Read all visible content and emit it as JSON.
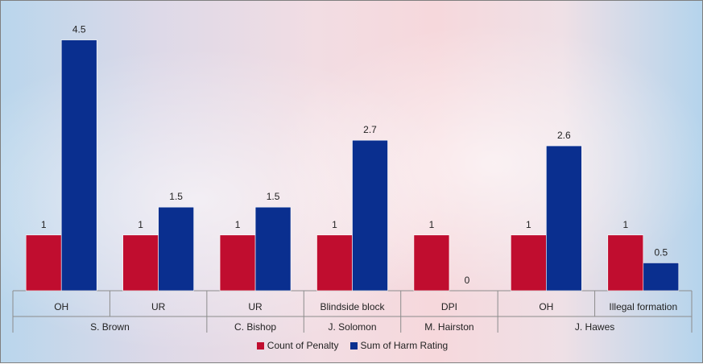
{
  "chart_data": {
    "type": "bar",
    "title": "",
    "xlabel": "",
    "ylabel": "",
    "ylim": [
      0,
      4.5
    ],
    "grid": false,
    "legend_position": "bottom",
    "groups": [
      {
        "name": "S. Brown",
        "categories": [
          "OH",
          "UR"
        ]
      },
      {
        "name": "C. Bishop",
        "categories": [
          "UR"
        ]
      },
      {
        "name": "J. Solomon",
        "categories": [
          "Blindside block"
        ]
      },
      {
        "name": "M. Hairston",
        "categories": [
          "DPI"
        ]
      },
      {
        "name": "J. Hawes",
        "categories": [
          "OH",
          "Illegal formation"
        ]
      }
    ],
    "categories": [
      "OH",
      "UR",
      "UR",
      "Blindside block",
      "DPI",
      "OH",
      "Illegal formation"
    ],
    "series": [
      {
        "name": "Count of Penalty",
        "color": "#c00d2f",
        "values": [
          1,
          1,
          1,
          1,
          1,
          1,
          1
        ],
        "labels": [
          "1",
          "1",
          "1",
          "1",
          "1",
          "1",
          "1"
        ]
      },
      {
        "name": "Sum of Harm Rating",
        "color": "#0a2f8f",
        "values": [
          4.5,
          1.5,
          1.5,
          2.7,
          0,
          2.6,
          0.5
        ],
        "labels": [
          "4.5",
          "1.5",
          "1.5",
          "2.7",
          "0",
          "2.6",
          "0.5"
        ]
      }
    ]
  }
}
